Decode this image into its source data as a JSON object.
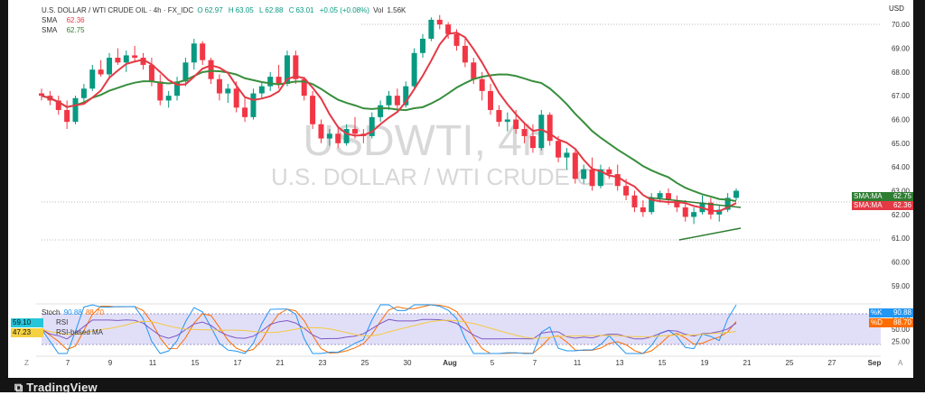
{
  "header": {
    "symbol": "U.S. DOLLAR / WTI CRUDE OIL · 4h · FX_IDC",
    "o_label": "O",
    "o": "62.97",
    "h_label": "H",
    "h": "63.05",
    "l_label": "L",
    "l": "62.88",
    "c_label": "C",
    "c": "63.01",
    "change": "+0.05 (+0.08%)",
    "vol_label": "Vol",
    "vol": "1.56K",
    "sma1_label": "SMA",
    "sma1": "62.36",
    "sma2_label": "SMA",
    "sma2": "62.75",
    "currency": "USD"
  },
  "watermark": {
    "ticker": "USDWTI, 4h",
    "name": "U.S. DOLLAR / WTI CRUDE OIL"
  },
  "price_scale": [
    "70.00",
    "69.00",
    "68.00",
    "67.00",
    "66.00",
    "65.00",
    "64.00",
    "63.00",
    "62.00",
    "61.00",
    "60.00",
    "59.00"
  ],
  "price_labels": [
    {
      "name": "SMA:MA",
      "value": "62.75",
      "color": "#2e7d32"
    },
    {
      "name": "SMA:MA",
      "value": "62.36",
      "color": "#e53945"
    }
  ],
  "osc": {
    "stoch_label": "Stoch",
    "stoch_k": "90.88",
    "stoch_d": "88.70",
    "rsi_label": "RSI",
    "rsi_value": "59.10",
    "rsi_ma_value": "47.23",
    "rsi_ma_label": "RSI-based MA",
    "scale": [
      "75.00",
      "50.00",
      "25.00"
    ],
    "pills": [
      {
        "name": "%K",
        "value": "90.88",
        "color": "#2196f3"
      },
      {
        "name": "%D",
        "value": "88.70",
        "color": "#ff6d00"
      }
    ],
    "left_pills": [
      {
        "value": "59.10",
        "color": "#26c6da"
      },
      {
        "value": "47.23",
        "color": "#f5d142"
      }
    ]
  },
  "time_axis": [
    "7",
    "9",
    "11",
    "15",
    "17",
    "21",
    "23",
    "25",
    "30",
    "Aug",
    "5",
    "7",
    "11",
    "13",
    "15",
    "19",
    "21",
    "25",
    "27",
    "Sep"
  ],
  "chart_data": {
    "type": "candlestick",
    "timeframe": "4h",
    "y_range": [
      58.5,
      70.5
    ],
    "candles_ohlc_approx": [
      [
        67.1,
        67.3,
        66.8,
        67.0
      ],
      [
        67.0,
        67.2,
        66.6,
        66.8
      ],
      [
        66.8,
        67.0,
        66.2,
        66.4
      ],
      [
        66.4,
        66.8,
        65.6,
        65.9
      ],
      [
        65.9,
        67.0,
        65.8,
        66.9
      ],
      [
        66.9,
        67.5,
        66.7,
        67.3
      ],
      [
        67.3,
        68.3,
        67.2,
        68.1
      ],
      [
        68.1,
        68.5,
        67.8,
        67.9
      ],
      [
        67.9,
        68.8,
        67.8,
        68.6
      ],
      [
        68.6,
        69.0,
        68.3,
        68.4
      ],
      [
        68.4,
        68.9,
        68.0,
        68.7
      ],
      [
        68.7,
        69.1,
        68.4,
        68.6
      ],
      [
        68.6,
        68.8,
        68.1,
        68.3
      ],
      [
        68.3,
        68.6,
        67.4,
        67.6
      ],
      [
        67.6,
        67.9,
        66.6,
        66.8
      ],
      [
        66.8,
        67.2,
        66.5,
        67.0
      ],
      [
        67.0,
        67.8,
        66.8,
        67.6
      ],
      [
        67.6,
        68.6,
        67.4,
        68.4
      ],
      [
        68.4,
        69.4,
        68.1,
        69.2
      ],
      [
        69.2,
        69.3,
        68.3,
        68.5
      ],
      [
        68.5,
        68.6,
        67.5,
        67.7
      ],
      [
        67.7,
        67.9,
        66.8,
        67.1
      ],
      [
        67.1,
        67.5,
        66.7,
        67.3
      ],
      [
        67.3,
        67.6,
        66.3,
        66.5
      ],
      [
        66.5,
        66.9,
        65.9,
        66.1
      ],
      [
        66.1,
        67.3,
        66.0,
        67.1
      ],
      [
        67.1,
        67.6,
        66.9,
        67.4
      ],
      [
        67.4,
        68.0,
        67.2,
        67.8
      ],
      [
        67.8,
        68.3,
        67.3,
        67.5
      ],
      [
        67.5,
        68.9,
        67.4,
        68.7
      ],
      [
        68.7,
        68.9,
        67.5,
        67.7
      ],
      [
        67.7,
        67.8,
        66.8,
        67.0
      ],
      [
        67.0,
        67.2,
        65.6,
        65.8
      ],
      [
        65.8,
        66.0,
        65.0,
        65.2
      ],
      [
        65.2,
        65.6,
        64.9,
        65.4
      ],
      [
        65.4,
        65.7,
        64.8,
        65.0
      ],
      [
        65.0,
        65.8,
        64.9,
        65.6
      ],
      [
        65.6,
        66.1,
        65.2,
        65.4
      ],
      [
        65.4,
        65.6,
        65.0,
        65.3
      ],
      [
        65.3,
        66.3,
        65.2,
        66.1
      ],
      [
        66.1,
        66.8,
        65.9,
        66.6
      ],
      [
        66.6,
        67.2,
        66.4,
        67.0
      ],
      [
        67.0,
        67.3,
        66.4,
        66.6
      ],
      [
        66.6,
        67.6,
        66.5,
        67.4
      ],
      [
        67.4,
        69.0,
        67.3,
        68.8
      ],
      [
        68.8,
        69.6,
        68.6,
        69.4
      ],
      [
        69.4,
        70.3,
        69.3,
        70.2
      ],
      [
        70.2,
        70.4,
        69.8,
        70.0
      ],
      [
        70.0,
        70.1,
        69.4,
        69.6
      ],
      [
        69.6,
        69.8,
        68.9,
        69.1
      ],
      [
        69.1,
        69.4,
        68.2,
        68.4
      ],
      [
        68.4,
        68.6,
        67.5,
        67.7
      ],
      [
        67.7,
        68.0,
        66.8,
        67.2
      ],
      [
        67.2,
        67.5,
        66.2,
        66.4
      ],
      [
        66.4,
        66.6,
        65.7,
        65.9
      ],
      [
        65.9,
        66.3,
        65.5,
        66.0
      ],
      [
        66.0,
        66.4,
        65.4,
        65.6
      ],
      [
        65.6,
        65.9,
        65.0,
        65.3
      ],
      [
        65.3,
        65.8,
        64.6,
        64.8
      ],
      [
        64.8,
        66.4,
        64.7,
        66.2
      ],
      [
        66.2,
        66.3,
        64.9,
        65.1
      ],
      [
        65.1,
        65.3,
        64.2,
        64.4
      ],
      [
        64.4,
        64.8,
        63.9,
        64.6
      ],
      [
        64.6,
        64.7,
        63.3,
        63.5
      ],
      [
        63.5,
        64.1,
        63.3,
        63.9
      ],
      [
        63.9,
        64.4,
        63.0,
        63.2
      ],
      [
        63.2,
        64.1,
        63.1,
        63.9
      ],
      [
        63.9,
        64.0,
        63.5,
        63.7
      ],
      [
        63.7,
        64.1,
        63.0,
        63.2
      ],
      [
        63.2,
        63.5,
        62.6,
        62.8
      ],
      [
        62.8,
        63.0,
        62.1,
        62.3
      ],
      [
        62.3,
        62.6,
        61.9,
        62.1
      ],
      [
        62.1,
        62.9,
        62.0,
        62.7
      ],
      [
        62.7,
        63.0,
        62.5,
        62.9
      ],
      [
        62.9,
        63.1,
        62.4,
        62.6
      ],
      [
        62.6,
        62.8,
        62.1,
        62.3
      ],
      [
        62.3,
        62.6,
        61.7,
        61.9
      ],
      [
        61.9,
        62.3,
        61.6,
        62.1
      ],
      [
        62.1,
        62.8,
        62.0,
        62.5
      ],
      [
        62.5,
        62.7,
        61.8,
        62.0
      ],
      [
        62.0,
        62.4,
        61.7,
        62.2
      ],
      [
        62.2,
        62.9,
        62.1,
        62.7
      ],
      [
        62.7,
        63.1,
        62.6,
        63.0
      ]
    ],
    "sma_fast_value": 62.36,
    "sma_slow_value": 62.75,
    "oscillator": {
      "stoch_k": 90.88,
      "stoch_d": 88.7,
      "rsi": 59.1,
      "rsi_ma": 47.23,
      "range": [
        0,
        100
      ]
    }
  }
}
